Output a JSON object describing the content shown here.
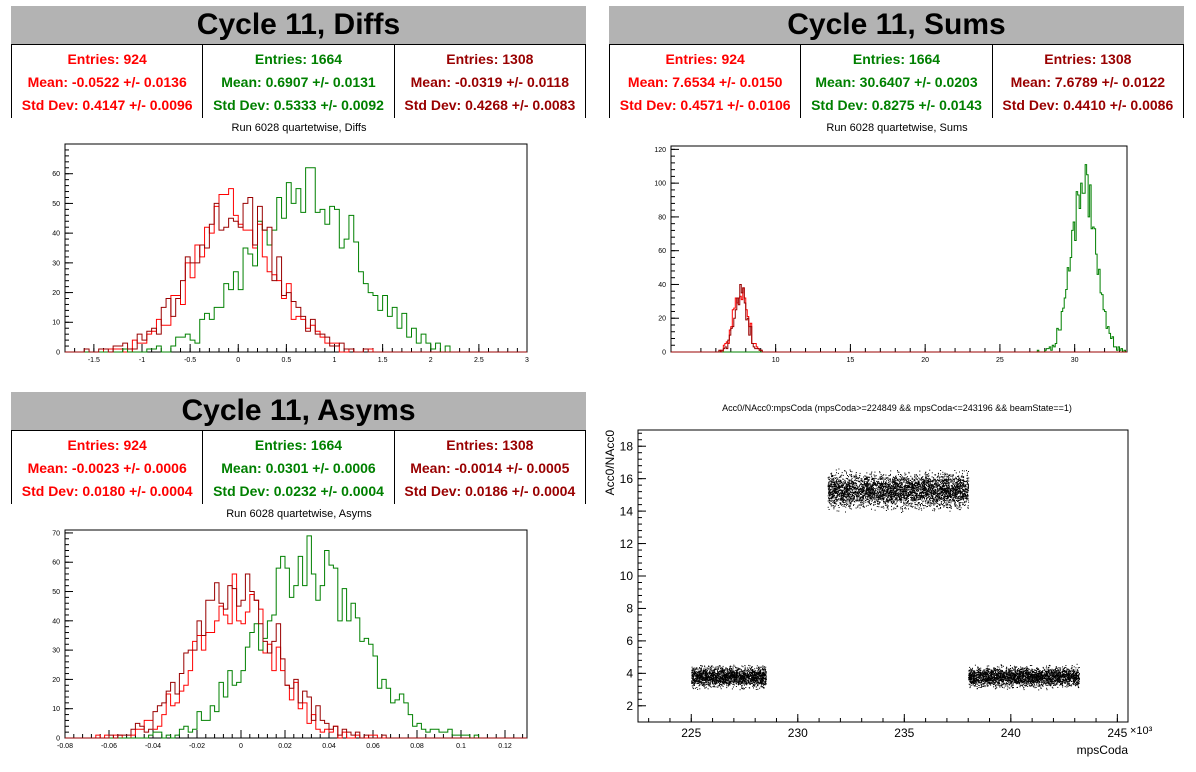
{
  "colors": {
    "red": "#ff0000",
    "green": "#008000",
    "darkred": "#990000",
    "black": "#000000",
    "banner": "#b3b3b3"
  },
  "panels": {
    "diffs": {
      "title": "Cycle 11, Diffs",
      "subtitle": "Run 6028 quartetwise, Diffs",
      "stats": [
        {
          "entries": "Entries: 924",
          "mean": "Mean: -0.0522 +/- 0.0136",
          "std": "Std Dev: 0.4147 +/- 0.0096",
          "color": "#ff0000"
        },
        {
          "entries": "Entries: 1664",
          "mean": "Mean: 0.6907 +/- 0.0131",
          "std": "Std Dev: 0.5333 +/- 0.0092",
          "color": "#008000"
        },
        {
          "entries": "Entries: 1308",
          "mean": "Mean: -0.0319 +/- 0.0118",
          "std": "Std Dev: 0.4268 +/- 0.0083",
          "color": "#990000"
        }
      ]
    },
    "sums": {
      "title": "Cycle 11, Sums",
      "subtitle": "Run 6028 quartetwise, Sums",
      "stats": [
        {
          "entries": "Entries: 924",
          "mean": "Mean: 7.6534 +/- 0.0150",
          "std": "Std Dev: 0.4571 +/- 0.0106",
          "color": "#ff0000"
        },
        {
          "entries": "Entries: 1664",
          "mean": "Mean: 30.6407 +/- 0.0203",
          "std": "Std Dev: 0.8275 +/- 0.0143",
          "color": "#008000"
        },
        {
          "entries": "Entries: 1308",
          "mean": "Mean: 7.6789 +/- 0.0122",
          "std": "Std Dev: 0.4410 +/- 0.0086",
          "color": "#990000"
        }
      ]
    },
    "asyms": {
      "title": "Cycle 11, Asyms",
      "subtitle": "Run 6028 quartetwise, Asyms",
      "stats": [
        {
          "entries": "Entries: 924",
          "mean": "Mean: -0.0023 +/- 0.0006",
          "std": "Std Dev: 0.0180 +/- 0.0004",
          "color": "#ff0000"
        },
        {
          "entries": "Entries: 1664",
          "mean": "Mean: 0.0301 +/- 0.0006",
          "std": "Std Dev: 0.0232 +/- 0.0004",
          "color": "#008000"
        },
        {
          "entries": "Entries: 1308",
          "mean": "Mean: -0.0014 +/- 0.0005",
          "std": "Std Dev: 0.0186 +/- 0.0004",
          "color": "#990000"
        }
      ]
    },
    "scatter": {
      "title": "Acc0/NAcc0:mpsCoda (mpsCoda>=224849 && mpsCoda<=243196 && beamState==1)",
      "xlabel": "mpsCoda",
      "ylabel": "Acc0/NAcc0",
      "xexp": "×10³"
    }
  },
  "chart_data": [
    {
      "type": "histogram",
      "title": "Run 6028 quartetwise, Diffs",
      "xlim": [
        -1.8,
        3.0
      ],
      "ylim": [
        0,
        70
      ],
      "xticks": [
        "-1.5",
        "-1",
        "-0.5",
        "0",
        "0.5",
        "1",
        "1.5",
        "2",
        "2.5",
        "3"
      ],
      "xtickvals": [
        -1.5,
        -1,
        -0.5,
        0,
        0.5,
        1,
        1.5,
        2,
        2.5,
        3
      ],
      "yticks": [
        "0",
        "10",
        "20",
        "30",
        "40",
        "50",
        "60"
      ],
      "ytickvals": [
        0,
        10,
        20,
        30,
        40,
        50,
        60
      ],
      "series": [
        {
          "color": "#ff0000",
          "dist": "gauss",
          "entries": 924,
          "mean": -0.0522,
          "std": 0.4147,
          "bin": 0.05,
          "peak": 58
        },
        {
          "color": "#008000",
          "dist": "gauss",
          "entries": 1664,
          "mean": 0.6907,
          "std": 0.5333,
          "bin": 0.05,
          "peak": 66
        },
        {
          "color": "#990000",
          "dist": "gauss",
          "entries": 1308,
          "mean": -0.0319,
          "std": 0.4268,
          "bin": 0.05,
          "peak": 57
        }
      ]
    },
    {
      "type": "histogram",
      "title": "Run 6028 quartetwise, Sums",
      "xlim": [
        3,
        33.5
      ],
      "ylim": [
        0,
        122
      ],
      "xticks": [
        "10",
        "15",
        "20",
        "25",
        "30"
      ],
      "xtickvals": [
        10,
        15,
        20,
        25,
        30
      ],
      "yticks": [
        "0",
        "20",
        "40",
        "60",
        "80",
        "100",
        "120"
      ],
      "ytickvals": [
        0,
        20,
        40,
        60,
        80,
        100,
        120
      ],
      "series": [
        {
          "color": "#ff0000",
          "dist": "gauss",
          "entries": 924,
          "mean": 7.6534,
          "std": 0.4571,
          "bin": 0.1,
          "peak": 46
        },
        {
          "color": "#008000",
          "dist": "gauss",
          "entries": 1664,
          "mean": 30.6407,
          "std": 0.8275,
          "bin": 0.1,
          "peak": 116
        },
        {
          "color": "#990000",
          "dist": "gauss",
          "entries": 1308,
          "mean": 7.6789,
          "std": 0.441,
          "bin": 0.1,
          "peak": 42
        }
      ]
    },
    {
      "type": "histogram",
      "title": "Run 6028 quartetwise, Asyms",
      "xlim": [
        -0.08,
        0.13
      ],
      "ylim": [
        0,
        71
      ],
      "xticks": [
        "-0.08",
        "-0.06",
        "-0.04",
        "-0.02",
        "0",
        "0.02",
        "0.04",
        "0.06",
        "0.08",
        "0.1",
        "0.12"
      ],
      "xtickvals": [
        -0.08,
        -0.06,
        -0.04,
        -0.02,
        0,
        0.02,
        0.04,
        0.06,
        0.08,
        0.1,
        0.12
      ],
      "yticks": [
        "0",
        "10",
        "20",
        "30",
        "40",
        "50",
        "60",
        "70"
      ],
      "ytickvals": [
        0,
        10,
        20,
        30,
        40,
        50,
        60,
        70
      ],
      "series": [
        {
          "color": "#ff0000",
          "dist": "gauss",
          "entries": 924,
          "mean": -0.0023,
          "std": 0.018,
          "bin": 0.002,
          "peak": 55
        },
        {
          "color": "#008000",
          "dist": "gauss",
          "entries": 1664,
          "mean": 0.0301,
          "std": 0.0232,
          "bin": 0.002,
          "peak": 68
        },
        {
          "color": "#990000",
          "dist": "gauss",
          "entries": 1308,
          "mean": -0.0014,
          "std": 0.0186,
          "bin": 0.002,
          "peak": 59
        }
      ]
    },
    {
      "type": "scatter",
      "title": "Acc0/NAcc0:mpsCoda (mpsCoda>=224849 && mpsCoda<=243196 && beamState==1)",
      "xlabel": "mpsCoda",
      "ylabel": "Acc0/NAcc0",
      "xlim": [
        222.5,
        245.5
      ],
      "ylim": [
        1,
        19
      ],
      "xticks": [
        "225",
        "230",
        "235",
        "240",
        "245"
      ],
      "xtickvals": [
        225,
        230,
        235,
        240,
        245
      ],
      "yticks": [
        "2",
        "4",
        "6",
        "8",
        "10",
        "12",
        "14",
        "16",
        "18"
      ],
      "ytickvals": [
        2,
        4,
        6,
        8,
        10,
        12,
        14,
        16,
        18
      ],
      "clusters": [
        {
          "x": [
            225.0,
            228.5
          ],
          "y_center": 3.8,
          "y_spread": 0.35,
          "n": 2200
        },
        {
          "x": [
            231.4,
            238.0
          ],
          "y_center": 15.3,
          "y_spread": 0.6,
          "n": 4200
        },
        {
          "x": [
            238.0,
            243.2
          ],
          "y_center": 3.8,
          "y_spread": 0.35,
          "n": 3000
        }
      ]
    }
  ]
}
